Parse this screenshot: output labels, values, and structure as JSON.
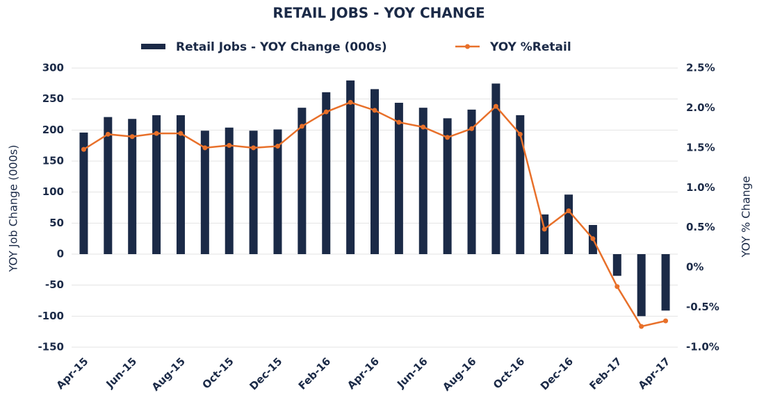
{
  "chart_data": {
    "type": "bar_line",
    "title": "RETAIL JOBS - YOY CHANGE",
    "y_label": "YOY Job Change (000s)",
    "y2_label": "YOY % Change",
    "categories": [
      "Apr-15",
      null,
      "Jun-15",
      null,
      "Aug-15",
      null,
      "Oct-15",
      null,
      "Dec-15",
      null,
      "Feb-16",
      null,
      "Apr-16",
      null,
      "Jun-16",
      null,
      "Aug-16",
      null,
      "Oct-16",
      null,
      "Dec-16",
      null,
      "Feb-17",
      null,
      "Apr-17"
    ],
    "series": [
      {
        "name": "Retail Jobs - YOY Change (000s)",
        "type": "bar",
        "color": "#1b2a47",
        "values": [
          196,
          221,
          218,
          224,
          224,
          199,
          204,
          199,
          201,
          236,
          261,
          280,
          266,
          244,
          236,
          219,
          233,
          275,
          224,
          64,
          96,
          47,
          -35,
          -100,
          -91
        ]
      },
      {
        "name": "YOY %Retail",
        "type": "line",
        "axis": "y2",
        "color": "#e8702a",
        "values": [
          1.48,
          1.67,
          1.64,
          1.68,
          1.68,
          1.5,
          1.53,
          1.5,
          1.52,
          1.77,
          1.95,
          2.07,
          1.97,
          1.82,
          1.76,
          1.63,
          1.74,
          2.02,
          1.67,
          0.48,
          0.71,
          0.36,
          -0.24,
          -0.74,
          -0.67
        ]
      }
    ],
    "ylim": [
      -150,
      300
    ],
    "yticks": [
      -150,
      -100,
      -50,
      0,
      50,
      100,
      150,
      200,
      250,
      300
    ],
    "y2lim": [
      -1.0,
      2.5
    ],
    "y2ticks": [
      {
        "value": -1.0,
        "label": "-1.0%"
      },
      {
        "value": -0.5,
        "label": "-0.5%"
      },
      {
        "value": 0,
        "label": "0%"
      },
      {
        "value": 0.5,
        "label": "0.5%"
      },
      {
        "value": 1.0,
        "label": "1.0%"
      },
      {
        "value": 1.5,
        "label": "1.5%"
      },
      {
        "value": 2.0,
        "label": "2.0%"
      },
      {
        "value": 2.5,
        "label": "2.5%"
      }
    ],
    "grid": true,
    "legend": "top"
  }
}
